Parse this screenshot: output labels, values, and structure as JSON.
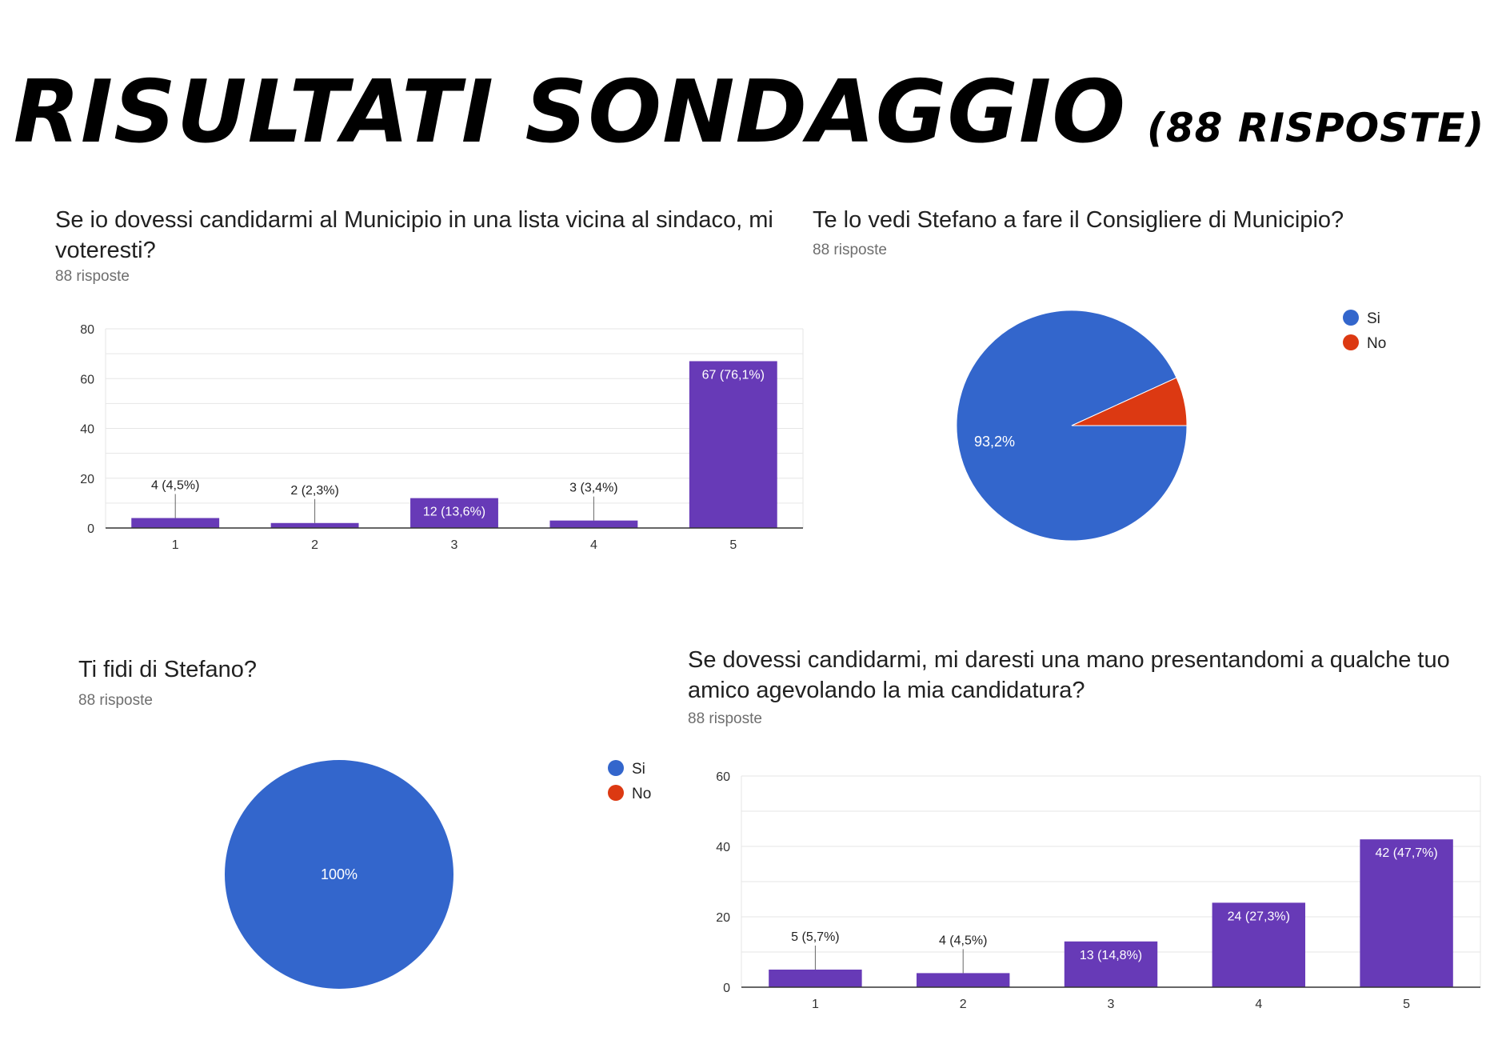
{
  "page": {
    "title_main": "RISULTATI SONDAGGIO",
    "title_sub": "(88 RISPOSTE)"
  },
  "colors": {
    "bar": "#673ab7",
    "si": "#3366cc",
    "no": "#dc3912",
    "grid": "#e6e6e6",
    "axis": "#333333"
  },
  "chart_data": [
    {
      "type": "bar",
      "title": "Se io dovessi candidarmi al Municipio in una lista vicina al sindaco, mi voteresti?",
      "subtitle": "88 risposte",
      "categories": [
        "1",
        "2",
        "3",
        "4",
        "5"
      ],
      "values": [
        4,
        2,
        12,
        3,
        67
      ],
      "labels": [
        "4 (4,5%)",
        "2 (2,3%)",
        "12 (13,6%)",
        "3 (3,4%)",
        "67 (76,1%)"
      ],
      "ylim": [
        0,
        80
      ],
      "yticks": [
        0,
        20,
        40,
        60,
        80
      ],
      "grid": true
    },
    {
      "type": "pie",
      "title": "Te lo vedi Stefano a fare il Consigliere di Municipio?",
      "subtitle": "88 risposte",
      "slices": [
        {
          "name": "Si",
          "value": 82,
          "percent": 93.2,
          "label": "93,2%"
        },
        {
          "name": "No",
          "value": 6,
          "percent": 6.8,
          "label": ""
        }
      ],
      "legend": "right"
    },
    {
      "type": "pie",
      "title": "Ti fidi di Stefano?",
      "subtitle": "88 risposte",
      "slices": [
        {
          "name": "Si",
          "value": 88,
          "percent": 100,
          "label": "100%"
        },
        {
          "name": "No",
          "value": 0,
          "percent": 0,
          "label": ""
        }
      ],
      "legend": "right"
    },
    {
      "type": "bar",
      "title": "Se dovessi candidarmi, mi daresti una mano presentandomi a qualche tuo amico agevolando la mia candidatura?",
      "subtitle": "88 risposte",
      "categories": [
        "1",
        "2",
        "3",
        "4",
        "5"
      ],
      "values": [
        5,
        4,
        13,
        24,
        42
      ],
      "labels": [
        "5 (5,7%)",
        "4 (4,5%)",
        "13 (14,8%)",
        "24 (27,3%)",
        "42 (47,7%)"
      ],
      "ylim": [
        0,
        60
      ],
      "yticks": [
        0,
        20,
        40,
        60
      ],
      "grid": true
    }
  ]
}
